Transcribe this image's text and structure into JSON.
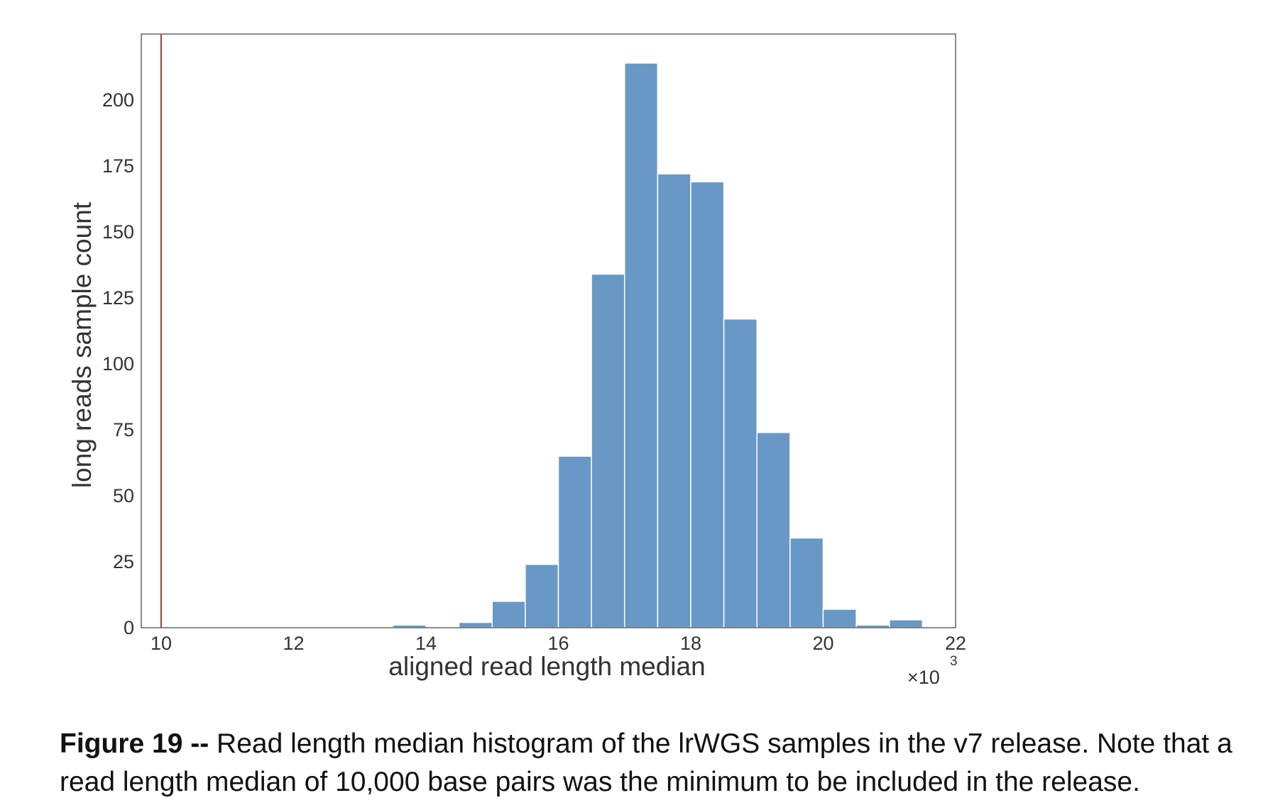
{
  "chart_data": {
    "type": "bar",
    "xlabel": "aligned read length median",
    "ylabel": "long reads sample count",
    "x_multiplier_label": "×10",
    "x_multiplier_exponent": "3",
    "xlim": [
      9.7,
      22.0
    ],
    "ylim": [
      0,
      225
    ],
    "xticks": [
      10,
      12,
      14,
      16,
      18,
      20,
      22
    ],
    "yticks": [
      0,
      25,
      50,
      75,
      100,
      125,
      150,
      175,
      200
    ],
    "bar_color": "#6898c5",
    "reference_line": {
      "x": 10,
      "color": "#a0403a"
    },
    "grid": false,
    "bins": [
      {
        "x0": 13.5,
        "x1": 14.0,
        "value": 1
      },
      {
        "x0": 14.5,
        "x1": 15.0,
        "value": 2
      },
      {
        "x0": 15.0,
        "x1": 15.5,
        "value": 10
      },
      {
        "x0": 15.5,
        "x1": 16.0,
        "value": 24
      },
      {
        "x0": 16.0,
        "x1": 16.5,
        "value": 65
      },
      {
        "x0": 16.5,
        "x1": 17.0,
        "value": 134
      },
      {
        "x0": 17.0,
        "x1": 17.5,
        "value": 214
      },
      {
        "x0": 17.5,
        "x1": 18.0,
        "value": 172
      },
      {
        "x0": 18.0,
        "x1": 18.5,
        "value": 169
      },
      {
        "x0": 18.5,
        "x1": 19.0,
        "value": 117
      },
      {
        "x0": 19.0,
        "x1": 19.5,
        "value": 74
      },
      {
        "x0": 19.5,
        "x1": 20.0,
        "value": 34
      },
      {
        "x0": 20.0,
        "x1": 20.5,
        "value": 7
      },
      {
        "x0": 20.5,
        "x1": 21.0,
        "value": 1
      },
      {
        "x0": 21.0,
        "x1": 21.5,
        "value": 3
      }
    ]
  },
  "caption": {
    "label": "Figure 19 --",
    "text": " Read length median histogram of the lrWGS samples in the v7 release.  Note that a read length median of 10,000 base pairs was the minimum to be included in the release."
  }
}
